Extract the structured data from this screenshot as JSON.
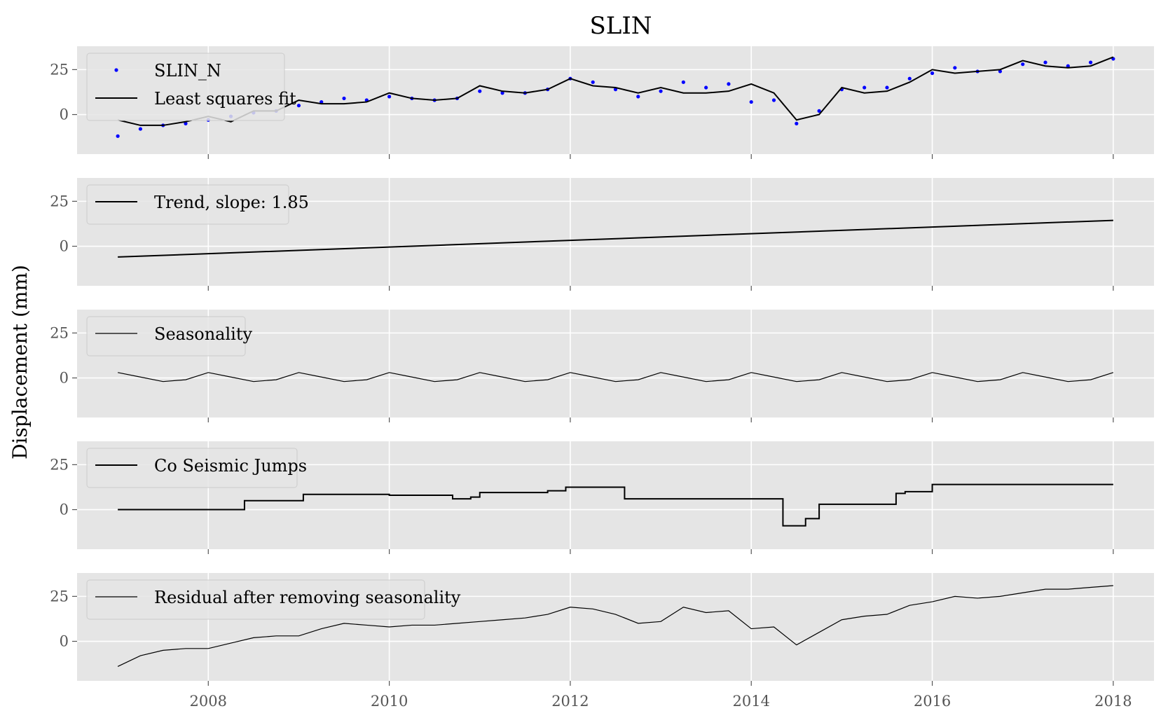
{
  "chart_data": {
    "type": "line",
    "title": "SLIN",
    "ylabel": "Displacement (mm)",
    "xlabel": "",
    "x_range": [
      2006.55,
      2018.45
    ],
    "x_ticks": [
      2008,
      2010,
      2012,
      2014,
      2016,
      2018
    ],
    "x_tick_labels": [
      "2008",
      "2010",
      "2012",
      "2014",
      "2016",
      "2018"
    ],
    "ylim": [
      -22,
      38
    ],
    "y_ticks": [
      0,
      25
    ],
    "y_tick_labels": [
      "0",
      "25"
    ],
    "grid": true,
    "legend_placement": "upper-left",
    "panels": [
      {
        "id": "observed",
        "legend": [
          "SLIN_N",
          "Least squares fit"
        ],
        "series": [
          {
            "name": "SLIN_N",
            "style": "points",
            "color": "#0000ff",
            "x": [
              2007.0,
              2007.25,
              2007.5,
              2007.75,
              2008.0,
              2008.25,
              2008.5,
              2008.75,
              2009.0,
              2009.25,
              2009.5,
              2009.75,
              2010.0,
              2010.25,
              2010.5,
              2010.75,
              2011.0,
              2011.25,
              2011.5,
              2011.75,
              2012.0,
              2012.25,
              2012.5,
              2012.75,
              2013.0,
              2013.25,
              2013.5,
              2013.75,
              2014.0,
              2014.25,
              2014.5,
              2014.75,
              2015.0,
              2015.25,
              2015.5,
              2015.75,
              2016.0,
              2016.25,
              2016.5,
              2016.75,
              2017.0,
              2017.25,
              2017.5,
              2017.75,
              2018.0
            ],
            "y": [
              -12,
              -8,
              -6,
              -5,
              -3,
              -1,
              1,
              2,
              5,
              7,
              9,
              8,
              10,
              9,
              8,
              9,
              13,
              12,
              12,
              14,
              20,
              18,
              14,
              10,
              13,
              18,
              15,
              17,
              7,
              8,
              -5,
              2,
              14,
              15,
              15,
              20,
              23,
              26,
              24,
              24,
              28,
              29,
              27,
              29,
              31
            ]
          },
          {
            "name": "Least squares fit",
            "style": "line",
            "color": "#000000",
            "x": [
              2007.0,
              2007.25,
              2007.5,
              2007.75,
              2008.0,
              2008.25,
              2008.5,
              2008.75,
              2009.0,
              2009.25,
              2009.5,
              2009.75,
              2010.0,
              2010.25,
              2010.5,
              2010.75,
              2011.0,
              2011.25,
              2011.5,
              2011.75,
              2012.0,
              2012.25,
              2012.5,
              2012.75,
              2013.0,
              2013.25,
              2013.5,
              2013.75,
              2014.0,
              2014.25,
              2014.5,
              2014.75,
              2015.0,
              2015.25,
              2015.5,
              2015.75,
              2016.0,
              2016.25,
              2016.5,
              2016.75,
              2017.0,
              2017.25,
              2017.5,
              2017.75,
              2018.0
            ],
            "y": [
              -3,
              -6,
              -6,
              -4,
              -1,
              -4,
              2,
              2,
              8,
              6,
              6,
              7,
              12,
              9,
              8,
              9,
              16,
              13,
              12,
              14,
              20,
              16,
              15,
              12,
              15,
              12,
              12,
              13,
              17,
              12,
              -3,
              0,
              15,
              12,
              13,
              18,
              25,
              23,
              24,
              25,
              30,
              27,
              26,
              27,
              32
            ]
          }
        ]
      },
      {
        "id": "trend",
        "legend": [
          "Trend, slope: 1.85"
        ],
        "series": [
          {
            "name": "Trend, slope: 1.85",
            "style": "line",
            "color": "#000000",
            "x": [
              2007.0,
              2018.0
            ],
            "y": [
              -6,
              14.4
            ]
          }
        ]
      },
      {
        "id": "seasonality",
        "legend": [
          "Seasonality"
        ],
        "series": [
          {
            "name": "Seasonality",
            "style": "line",
            "color": "#000000",
            "x": [
              2007.0,
              2007.25,
              2007.5,
              2007.75,
              2008.0,
              2008.25,
              2008.5,
              2008.75,
              2009.0,
              2009.25,
              2009.5,
              2009.75,
              2010.0,
              2010.25,
              2010.5,
              2010.75,
              2011.0,
              2011.25,
              2011.5,
              2011.75,
              2012.0,
              2012.25,
              2012.5,
              2012.75,
              2013.0,
              2013.25,
              2013.5,
              2013.75,
              2014.0,
              2014.25,
              2014.5,
              2014.75,
              2015.0,
              2015.25,
              2015.5,
              2015.75,
              2016.0,
              2016.25,
              2016.5,
              2016.75,
              2017.0,
              2017.25,
              2017.5,
              2017.75,
              2018.0
            ],
            "y": [
              3,
              0.5,
              -2,
              -1,
              3,
              0.5,
              -2,
              -1,
              3,
              0.5,
              -2,
              -1,
              3,
              0.5,
              -2,
              -1,
              3,
              0.5,
              -2,
              -1,
              3,
              0.5,
              -2,
              -1,
              3,
              0.5,
              -2,
              -1,
              3,
              0.5,
              -2,
              -1,
              3,
              0.5,
              -2,
              -1,
              3,
              0.5,
              -2,
              -1,
              3,
              0.5,
              -2,
              -1,
              3
            ]
          }
        ]
      },
      {
        "id": "jumps",
        "legend": [
          "Co Seismic Jumps"
        ],
        "series": [
          {
            "name": "Co Seismic Jumps",
            "style": "step",
            "color": "#000000",
            "x": [
              2007.0,
              2008.4,
              2009.05,
              2010.0,
              2010.7,
              2010.9,
              2011.0,
              2011.15,
              2011.75,
              2011.95,
              2012.6,
              2014.35,
              2014.6,
              2014.75,
              2015.6,
              2015.7,
              2016.0,
              2018.0
            ],
            "y": [
              0,
              5,
              8.5,
              8,
              6,
              7,
              9.5,
              9.5,
              10.5,
              12.5,
              6,
              -9,
              -5,
              3,
              9,
              10,
              14,
              14
            ]
          }
        ]
      },
      {
        "id": "residual",
        "legend": [
          "Residual after removing seasonality"
        ],
        "series": [
          {
            "name": "Residual after removing seasonality",
            "style": "line",
            "color": "#000000",
            "x": [
              2007.0,
              2007.25,
              2007.5,
              2007.75,
              2008.0,
              2008.25,
              2008.5,
              2008.75,
              2009.0,
              2009.25,
              2009.5,
              2009.75,
              2010.0,
              2010.25,
              2010.5,
              2010.75,
              2011.0,
              2011.25,
              2011.5,
              2011.75,
              2012.0,
              2012.25,
              2012.5,
              2012.75,
              2013.0,
              2013.25,
              2013.5,
              2013.75,
              2014.0,
              2014.25,
              2014.5,
              2014.75,
              2015.0,
              2015.25,
              2015.5,
              2015.75,
              2016.0,
              2016.25,
              2016.5,
              2016.75,
              2017.0,
              2017.25,
              2017.5,
              2017.75,
              2018.0
            ],
            "y": [
              -14,
              -8,
              -5,
              -4,
              -4,
              -1,
              2,
              3,
              3,
              7,
              10,
              9,
              8,
              9,
              9,
              10,
              11,
              12,
              13,
              15,
              19,
              18,
              15,
              10,
              11,
              19,
              16,
              17,
              7,
              8,
              -2,
              5,
              12,
              14,
              15,
              20,
              22,
              25,
              24,
              25,
              27,
              29,
              29,
              30,
              31
            ]
          }
        ]
      }
    ]
  },
  "colors": {
    "axes_bg": "#e5e5e5",
    "grid": "#ffffff",
    "points": "#0000ff",
    "line": "#000000"
  }
}
